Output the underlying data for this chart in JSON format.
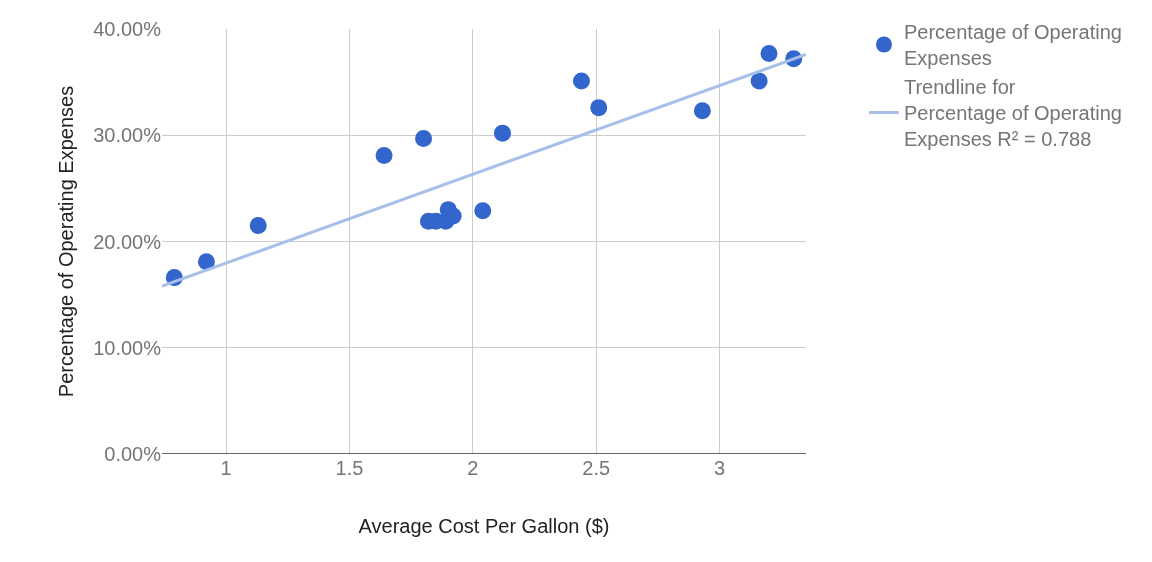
{
  "chart_data": {
    "type": "scatter",
    "xlabel": "Average Cost Per Gallon ($)",
    "ylabel": "Percentage of Operating Expenses",
    "xlim": [
      0.74,
      3.35
    ],
    "xticks": [
      1,
      1.5,
      2,
      2.5,
      3
    ],
    "ylim": [
      0,
      40
    ],
    "yticks": [
      {
        "value": 0,
        "label": "0.00%"
      },
      {
        "value": 10,
        "label": "10.00%"
      },
      {
        "value": 20,
        "label": "20.00%"
      },
      {
        "value": 30,
        "label": "30.00%"
      },
      {
        "value": 40,
        "label": "40.00%"
      }
    ],
    "grid": true,
    "legend": "top right",
    "marker": "circle",
    "series": [
      {
        "name": "Percentage of Operating Expenses",
        "color": "#3366cc",
        "x": [
          0.79,
          0.92,
          1.13,
          1.64,
          1.8,
          1.82,
          1.85,
          1.89,
          1.9,
          1.92,
          2.04,
          2.12,
          2.44,
          2.51,
          2.93,
          3.16,
          3.2,
          3.3
        ],
        "values": [
          16.6,
          18.1,
          21.5,
          28.1,
          29.7,
          21.9,
          21.9,
          21.9,
          23.0,
          22.4,
          22.9,
          30.2,
          35.1,
          32.6,
          32.3,
          35.1,
          37.7,
          37.2
        ]
      },
      {
        "name": "Trendline for Percentage of Operating Expenses R² = 0.788",
        "type": "line",
        "color": "#a8bfea",
        "marker": "none",
        "x": [
          0.74,
          3.35
        ],
        "values": [
          15.8,
          37.6
        ]
      }
    ]
  }
}
